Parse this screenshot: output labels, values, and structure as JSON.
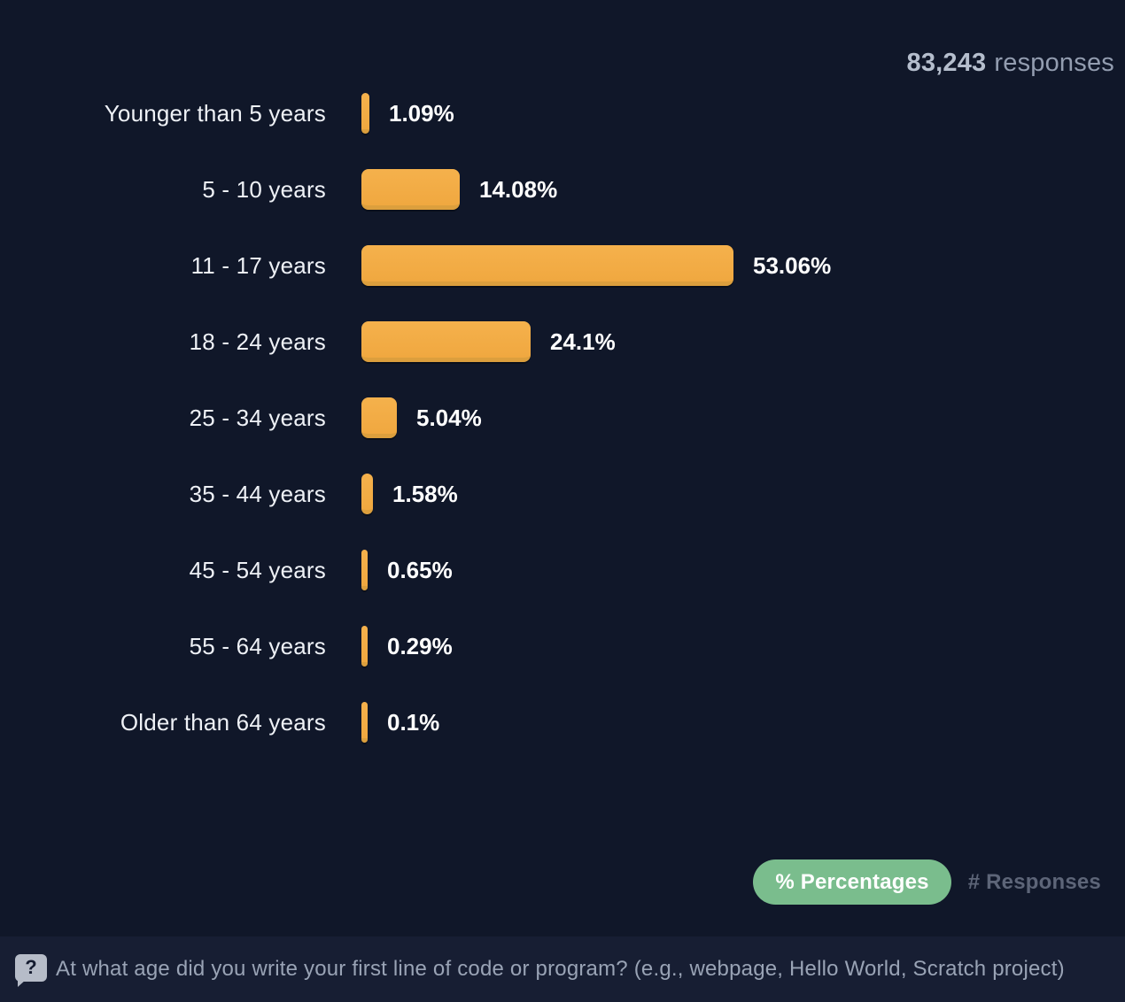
{
  "header": {
    "responses_count": "83,243",
    "responses_label": "responses"
  },
  "chart_data": {
    "type": "bar",
    "orientation": "horizontal",
    "title": "",
    "categories": [
      "Younger than 5 years",
      "5 - 10 years",
      "11 - 17 years",
      "18 - 24 years",
      "25 - 34 years",
      "35 - 44 years",
      "45 - 54 years",
      "55 - 64 years",
      "Older than 64 years"
    ],
    "values": [
      1.09,
      14.08,
      53.06,
      24.1,
      5.04,
      1.58,
      0.65,
      0.29,
      0.1
    ],
    "value_labels": [
      "1.09%",
      "14.08%",
      "53.06%",
      "24.1%",
      "5.04%",
      "1.58%",
      "0.65%",
      "0.29%",
      "0.1%"
    ],
    "unit": "percent",
    "value_axis_max": 53.06,
    "total_responses": "83,243",
    "grid": false,
    "legend": false,
    "bar_color": "#f2ab43",
    "bar_shadow_color": "#dc9f3d",
    "background_color": "#101729"
  },
  "toggle": {
    "percentages_label": "% Percentages",
    "responses_label": "# Responses",
    "active": "percentages",
    "active_color": "#7abd8d"
  },
  "footer": {
    "icon_glyph": "?",
    "question": "At what age did you write your first line of code or program? (e.g., webpage, Hello World, Scratch project)"
  }
}
